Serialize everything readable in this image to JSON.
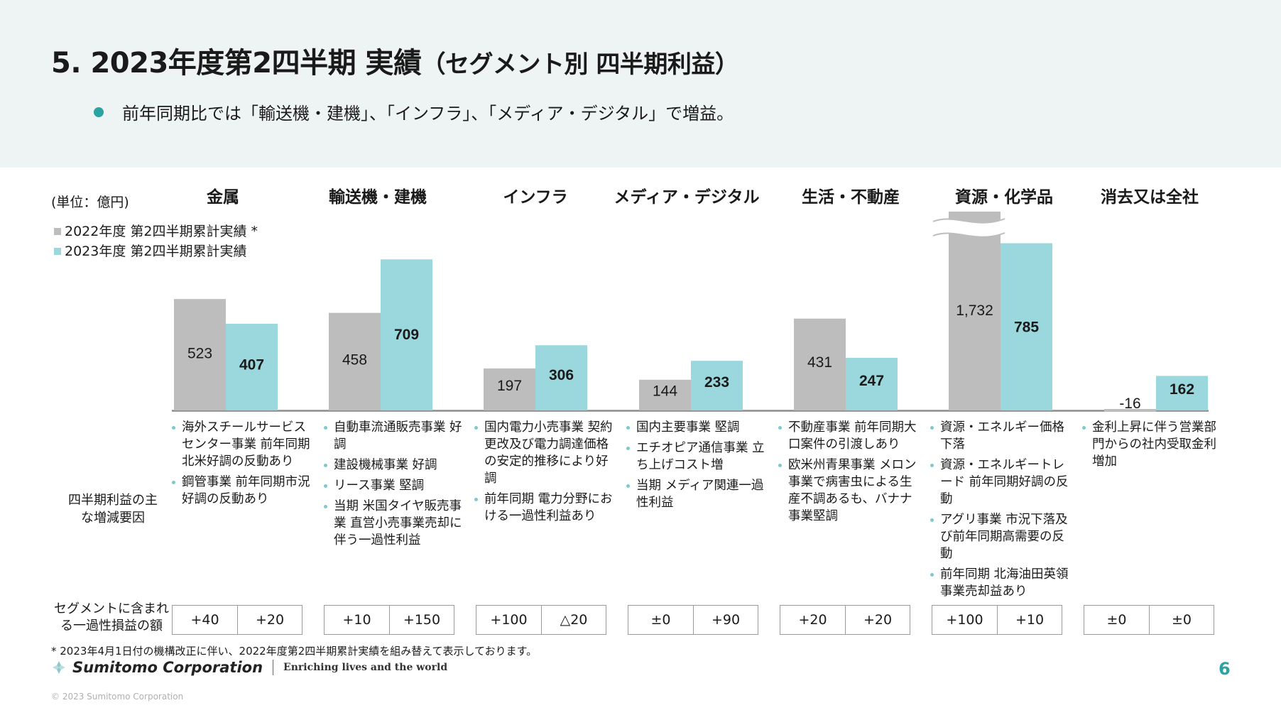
{
  "header": {
    "title_main": "5. 2023年度第2四半期 実績",
    "title_sub": "（セグメント別 四半期利益）",
    "bullet": "前年同期比では「輸送機・建機」、「インフラ」、「メディア・デジタル」で増益。"
  },
  "unit_label": "(単位：億円)",
  "legend": [
    {
      "label": "2022年度 第2四半期累計実績 *",
      "color": "#bdbdbd"
    },
    {
      "label": "2023年度 第2四半期累計実績",
      "color": "#9ad8de"
    }
  ],
  "colors": {
    "prev": "#bdbdbd",
    "curr": "#9ad8de",
    "accent": "#2aa3a3",
    "axis": "#8c8c8c"
  },
  "chart_data": {
    "type": "bar",
    "categories": [
      "金属",
      "輸送機・建機",
      "インフラ",
      "メディア・デジタル",
      "生活・不動産",
      "資源・化学品",
      "消去又は全社"
    ],
    "series": [
      {
        "name": "2022年度 第2四半期累計実績 *",
        "values": [
          523,
          458,
          197,
          144,
          431,
          1732,
          -16
        ],
        "labels": [
          "523",
          "458",
          "197",
          "144",
          "431",
          "1,732",
          "-16"
        ]
      },
      {
        "name": "2023年度 第2四半期累計実績",
        "values": [
          407,
          709,
          306,
          233,
          247,
          785,
          162
        ],
        "labels": [
          "407",
          "709",
          "306",
          "233",
          "247",
          "785",
          "162"
        ]
      }
    ],
    "axis_break": {
      "category": "資源・化学品",
      "series": "2022年度 第2四半期累計実績 *"
    },
    "grid": false
  },
  "factors_label": "四半期利益の主な増減要因",
  "factors": [
    [
      "海外スチールサービスセンター事業 前年同期北米好調の反動あり",
      "鋼管事業 前年同期市況好調の反動あり"
    ],
    [
      "自動車流通販売事業 好調",
      "建設機械事業 好調",
      "リース事業 堅調",
      "当期 米国タイヤ販売事業 直営小売事業売却に伴う一過性利益"
    ],
    [
      "国内電力小売事業 契約更改及び電力調達価格の安定的推移により好調",
      "前年同期 電力分野における一過性利益あり"
    ],
    [
      "国内主要事業 堅調",
      "エチオピア通信事業 立ち上げコスト増",
      "当期 メディア関連一過性利益"
    ],
    [
      "不動産事業 前年同期大口案件の引渡しあり",
      "欧米州青果事業 メロン事業で病害虫による生産不調あるも、バナナ事業堅調"
    ],
    [
      "資源・エネルギー価格下落",
      "資源・エネルギートレード 前年同期好調の反動",
      "アグリ事業 市況下落及び前年同期高需要の反動",
      "前年同期 北海油田英領事業売却益あり"
    ],
    [
      "金利上昇に伴う営業部門からの社内受取金利増加"
    ]
  ],
  "oneoff_label": "セグメントに含まれる一過性損益の額",
  "oneoff": [
    [
      "+40",
      "+20"
    ],
    [
      "+10",
      "+150"
    ],
    [
      "+100",
      "△20"
    ],
    [
      "±0",
      "+90"
    ],
    [
      "+20",
      "+20"
    ],
    [
      "+100",
      "+10"
    ],
    [
      "±0",
      "±0"
    ]
  ],
  "footnote": "* 2023年4月1日付の機構改正に伴い、2022年度第2四半期累計実績を組み替えて表示しております。",
  "brand": {
    "name": "Sumitomo Corporation",
    "tagline": "Enriching lives and the world"
  },
  "page_number": "6",
  "copyright": "© 2023 Sumitomo Corporation"
}
